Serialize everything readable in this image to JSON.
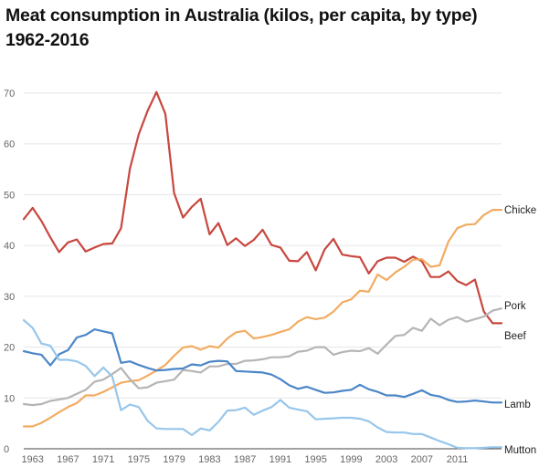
{
  "title_line1": "Meat consumption in Australia (kilos, per capita, by type)",
  "title_line2": "1962-2016",
  "chart_data": {
    "type": "line",
    "ylim": [
      0,
      70
    ],
    "yticks": [
      0,
      10,
      20,
      30,
      40,
      50,
      60,
      70
    ],
    "xlim": [
      1962,
      2016
    ],
    "xticks": [
      1963,
      1967,
      1971,
      1975,
      1979,
      1983,
      1987,
      1991,
      1995,
      1999,
      2003,
      2007,
      2011
    ],
    "grid": true,
    "x": [
      1962,
      1963,
      1964,
      1965,
      1966,
      1967,
      1968,
      1969,
      1970,
      1971,
      1972,
      1973,
      1974,
      1975,
      1976,
      1977,
      1978,
      1979,
      1980,
      1981,
      1982,
      1983,
      1984,
      1985,
      1986,
      1987,
      1988,
      1989,
      1990,
      1991,
      1992,
      1993,
      1994,
      1995,
      1996,
      1997,
      1998,
      1999,
      2000,
      2001,
      2002,
      2003,
      2004,
      2005,
      2006,
      2007,
      2008,
      2009,
      2010,
      2011,
      2012,
      2013,
      2014,
      2015,
      2016
    ],
    "series": [
      {
        "name": "Beef",
        "color": "#c8473f",
        "values": [
          45.2,
          47.4,
          44.8,
          41.6,
          38.7,
          40.6,
          41.2,
          38.8,
          39.6,
          40.3,
          40.4,
          43.4,
          55.1,
          61.9,
          66.5,
          70.2,
          65.9,
          50.3,
          45.5,
          47.6,
          49.2,
          42.2,
          44.4,
          40.1,
          41.4,
          39.9,
          41.1,
          43.1,
          40.1,
          39.6,
          37.0,
          36.9,
          38.7,
          35.1,
          39.2,
          41.3,
          38.2,
          37.9,
          37.7,
          34.5,
          36.9,
          37.6,
          37.6,
          36.8,
          37.8,
          36.9,
          33.8,
          33.8,
          34.9,
          33.0,
          32.2,
          33.3,
          27.0,
          24.7,
          24.7
        ]
      },
      {
        "name": "Chicken",
        "color": "#f2ab61",
        "values": [
          4.4,
          4.4,
          5.1,
          6.1,
          7.2,
          8.2,
          9.0,
          10.5,
          10.5,
          11.2,
          12.1,
          13.0,
          13.3,
          13.5,
          14.4,
          15.4,
          16.5,
          18.3,
          19.9,
          20.2,
          19.5,
          20.2,
          19.9,
          21.7,
          22.9,
          23.2,
          21.7,
          22.0,
          22.4,
          23.0,
          23.5,
          25.0,
          25.9,
          25.5,
          25.8,
          27.0,
          28.8,
          29.4,
          31.1,
          30.9,
          34.3,
          33.2,
          34.7,
          35.8,
          37.2,
          37.3,
          35.8,
          36.1,
          40.8,
          43.4,
          44.1,
          44.2,
          46.0,
          47.0,
          47.0
        ]
      },
      {
        "name": "Pork",
        "color": "#b5b5b5",
        "values": [
          8.8,
          8.6,
          8.8,
          9.4,
          9.7,
          10.0,
          10.8,
          11.6,
          13.2,
          13.6,
          14.7,
          15.9,
          13.7,
          11.9,
          12.1,
          13.0,
          13.3,
          13.6,
          15.5,
          15.3,
          15.0,
          16.2,
          16.2,
          16.7,
          16.7,
          17.3,
          17.4,
          17.6,
          18.0,
          18.0,
          18.2,
          19.1,
          19.3,
          20.0,
          20.0,
          18.5,
          19.0,
          19.3,
          19.2,
          19.8,
          18.7,
          20.5,
          22.2,
          22.4,
          23.8,
          23.2,
          25.6,
          24.3,
          25.4,
          25.9,
          25.0,
          25.5,
          26.0,
          27.2,
          27.6
        ]
      },
      {
        "name": "Lamb",
        "color": "#4b86c8",
        "values": [
          19.2,
          18.8,
          18.5,
          16.4,
          18.6,
          19.4,
          21.9,
          22.4,
          23.5,
          23.1,
          22.7,
          16.9,
          17.2,
          16.5,
          15.9,
          15.4,
          15.5,
          15.7,
          15.8,
          16.6,
          16.4,
          17.1,
          17.3,
          17.2,
          15.3,
          15.2,
          15.1,
          15.0,
          14.6,
          13.7,
          12.5,
          11.8,
          12.2,
          11.6,
          11.0,
          11.1,
          11.4,
          11.6,
          12.6,
          11.7,
          11.2,
          10.5,
          10.5,
          10.2,
          10.8,
          11.5,
          10.6,
          10.3,
          9.6,
          9.2,
          9.3,
          9.5,
          9.3,
          9.1,
          9.1
        ]
      },
      {
        "name": "Mutton",
        "color": "#97c6ea",
        "values": [
          25.3,
          23.8,
          20.7,
          20.3,
          17.5,
          17.5,
          17.2,
          16.3,
          14.3,
          16.0,
          14.2,
          7.6,
          8.7,
          8.2,
          5.5,
          4.0,
          3.9,
          3.9,
          3.9,
          2.7,
          4.0,
          3.6,
          5.3,
          7.5,
          7.6,
          8.1,
          6.7,
          7.5,
          8.2,
          9.6,
          8.1,
          7.7,
          7.4,
          5.8,
          5.9,
          6.0,
          6.1,
          6.1,
          5.9,
          5.4,
          4.2,
          3.3,
          3.2,
          3.2,
          2.9,
          2.9,
          2.2,
          1.5,
          0.9,
          0.2,
          0.1,
          0.1,
          0.2,
          0.3,
          0.3
        ]
      }
    ],
    "labels": {
      "beef": "Beef",
      "chicken": "Chicke",
      "pork": "Pork",
      "lamb": "Lamb",
      "mutton": "Mutton"
    }
  }
}
